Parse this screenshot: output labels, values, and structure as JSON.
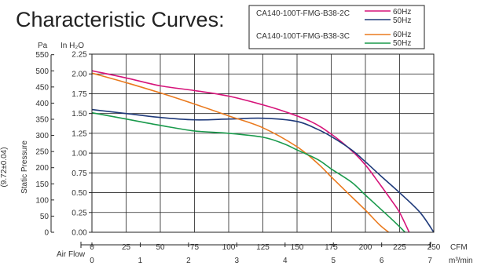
{
  "chart_data": {
    "type": "line",
    "title": "Characteristic Curves:",
    "side_label": "(9.72±0.04)",
    "y_label": "Static Pressure",
    "y_unit_pa": "Pa",
    "y_unit_inh2o": "In H₂O",
    "x_label": "Air Flow",
    "x_unit_cfm": "CFM",
    "x_unit_m3min": "m³/min",
    "x_cfm_range": [
      0,
      250
    ],
    "y_inh2o_range": [
      0,
      2.25
    ],
    "y_pa_ticks": [
      "0",
      "50",
      "100",
      "150",
      "200",
      "250",
      "300",
      "350",
      "400",
      "450",
      "500",
      "550"
    ],
    "y_inh2o_ticks": [
      "0.00",
      "0.25",
      "0.50",
      "0.75",
      "1.00",
      "1.25",
      "1.50",
      "1.75",
      "2.00",
      "2.25"
    ],
    "x_cfm_ticks": [
      "0",
      "25",
      "50",
      "75",
      "100",
      "125",
      "150",
      "175",
      "200",
      "225",
      "250"
    ],
    "x_m3min_ticks": [
      "0",
      "1",
      "2",
      "3",
      "4",
      "5",
      "6",
      "7"
    ],
    "grid": true,
    "legend_groups": [
      {
        "model": "CA140-100T-FMG-B38-2C",
        "entries": [
          "60Hz",
          "50Hz"
        ]
      },
      {
        "model": "CA140-100T-FMG-B38-3C",
        "entries": [
          "60Hz",
          "50Hz"
        ]
      }
    ],
    "series": [
      {
        "group": "CA140-100T-FMG-B38-2C",
        "name": "60Hz",
        "color": "#d6147a",
        "x": [
          0,
          25,
          50,
          75,
          100,
          125,
          140,
          160,
          175,
          190,
          200,
          210,
          220,
          225,
          232
        ],
        "y": [
          2.04,
          1.95,
          1.85,
          1.79,
          1.72,
          1.61,
          1.53,
          1.4,
          1.24,
          1.03,
          0.85,
          0.62,
          0.38,
          0.25,
          0.0
        ]
      },
      {
        "group": "CA140-100T-FMG-B38-2C",
        "name": "50Hz",
        "color": "#1f3a7a",
        "x": [
          0,
          25,
          50,
          75,
          100,
          125,
          150,
          165,
          175,
          190,
          200,
          212,
          225,
          240,
          250
        ],
        "y": [
          1.55,
          1.5,
          1.45,
          1.42,
          1.43,
          1.44,
          1.4,
          1.3,
          1.21,
          1.04,
          0.89,
          0.7,
          0.5,
          0.25,
          0.0
        ]
      },
      {
        "group": "CA140-100T-FMG-B38-3C",
        "name": "60Hz",
        "color": "#ea7a1e",
        "x": [
          0,
          25,
          50,
          75,
          100,
          125,
          150,
          165,
          175,
          188,
          200,
          210,
          217
        ],
        "y": [
          2.01,
          1.89,
          1.76,
          1.62,
          1.47,
          1.32,
          1.08,
          0.87,
          0.7,
          0.48,
          0.28,
          0.1,
          0.0
        ]
      },
      {
        "group": "CA140-100T-FMG-B38-3C",
        "name": "50Hz",
        "color": "#1a9a4c",
        "x": [
          0,
          25,
          50,
          75,
          100,
          125,
          140,
          150,
          165,
          175,
          190,
          200,
          212,
          222,
          229
        ],
        "y": [
          1.51,
          1.43,
          1.35,
          1.28,
          1.25,
          1.2,
          1.12,
          1.04,
          0.92,
          0.8,
          0.63,
          0.47,
          0.28,
          0.12,
          0.0
        ]
      }
    ]
  }
}
